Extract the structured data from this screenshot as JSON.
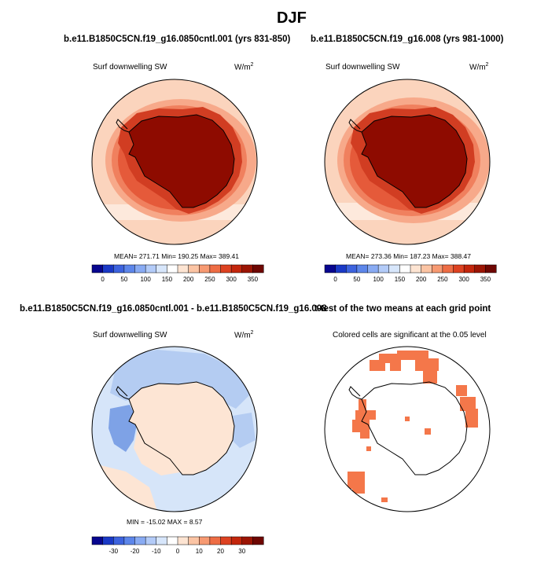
{
  "page_title": "DJF",
  "panels": {
    "top_left": {
      "title": "b.e11.B1850C5CN.f19_g16.0850cntl.001 (yrs 831-850)",
      "variable": "Surf downwelling SW",
      "units_base": "W/m",
      "units_exp": "2",
      "stats": "MEAN= 271.71  Min= 190.25  Max= 389.41"
    },
    "top_right": {
      "title": "b.e11.B1850C5CN.f19_g16.008 (yrs 981-1000)",
      "variable": "Surf downwelling SW",
      "units_base": "W/m",
      "units_exp": "2",
      "stats": "MEAN= 273.36  Min= 187.23  Max= 388.47"
    },
    "bottom_left": {
      "title": "b.e11.B1850C5CN.f19_g16.0850cntl.001 - b.e11.B1850C5CN.f19_g16.008",
      "variable": "Surf downwelling SW",
      "units_base": "W/m",
      "units_exp": "2",
      "stats": "MIN = -15.02  MAX =   8.57"
    },
    "bottom_right": {
      "title": "t-test of the two means at each grid point",
      "variable": "Colored cells are significant at the 0.05 level"
    }
  },
  "colorbars": {
    "absolute": {
      "labels": [
        "0",
        "50",
        "100",
        "150",
        "200",
        "250",
        "300",
        "350"
      ],
      "colors": [
        "#08068f",
        "#1a39c6",
        "#3d63de",
        "#5d86ea",
        "#89abf3",
        "#b3cbf8",
        "#d7e6fb",
        "#ffffff",
        "#fde4d2",
        "#fbc4a4",
        "#f79a72",
        "#ee6d45",
        "#dd4221",
        "#c3260c",
        "#9c1504",
        "#6e0702"
      ]
    },
    "difference": {
      "labels": [
        "-30",
        "-20",
        "-10",
        "0",
        "10",
        "20",
        "30"
      ],
      "colors": [
        "#08068f",
        "#1a39c6",
        "#3d63de",
        "#5d86ea",
        "#89abf3",
        "#b3cbf8",
        "#d7e6fb",
        "#ffffff",
        "#fde4d2",
        "#fbc4a4",
        "#f79a72",
        "#ee6d45",
        "#dd4221",
        "#c3260c",
        "#9c1504",
        "#6e0702"
      ]
    }
  },
  "map_colors": {
    "outer": "#fbd4bd",
    "ring2": "#f7a98a",
    "ring3": "#f0805e",
    "ring4": "#e55a3a",
    "ring5": "#d13d22",
    "continent": "#8e0b00",
    "diff_base": "#d6e5f9",
    "diff_blue": "#b4ccf2",
    "diff_dark": "#7ea2e6",
    "diff_warm": "#fde5d4",
    "sig": "#f4774a"
  }
}
